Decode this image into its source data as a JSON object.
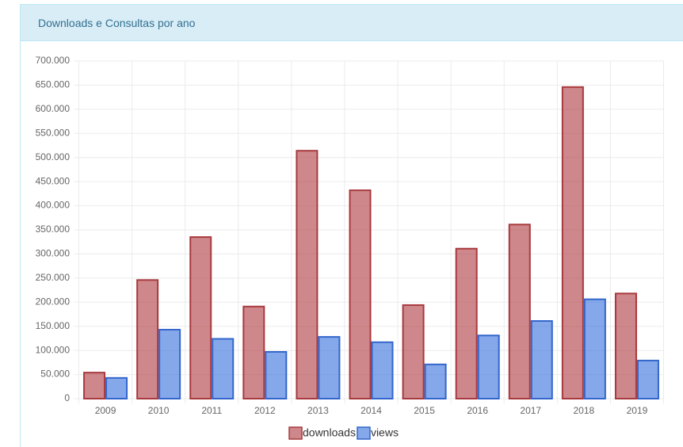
{
  "chart_data": {
    "type": "bar",
    "title": "Downloads e Consultas por ano",
    "categories": [
      "2009",
      "2010",
      "2011",
      "2012",
      "2013",
      "2014",
      "2015",
      "2016",
      "2017",
      "2018",
      "2019"
    ],
    "series": [
      {
        "name": "downloads",
        "color": "#a83a3e",
        "values": [
          54000,
          246000,
          335000,
          191000,
          514000,
          432000,
          194000,
          311000,
          361000,
          646000,
          218000
        ]
      },
      {
        "name": "views",
        "color": "#3366cc",
        "values": [
          43000,
          143000,
          124000,
          97000,
          128000,
          117000,
          71000,
          131000,
          161000,
          206000,
          79000
        ]
      }
    ],
    "ylim": [
      0,
      700000
    ],
    "yticks": [
      0,
      {
        "value": 50000,
        "label": "50.000"
      },
      {
        "value": 100000,
        "label": "100.000"
      },
      {
        "value": 150000,
        "label": "150.000"
      },
      {
        "value": 200000,
        "label": "200.000"
      },
      {
        "value": 250000,
        "label": "250.000"
      },
      {
        "value": 300000,
        "label": "300.000"
      },
      {
        "value": 350000,
        "label": "350.000"
      },
      {
        "value": 400000,
        "label": "400.000"
      },
      {
        "value": 450000,
        "label": "450.000"
      },
      {
        "value": 500000,
        "label": "500.000"
      },
      {
        "value": 550000,
        "label": "550.000"
      },
      {
        "value": 600000,
        "label": "600.000"
      },
      {
        "value": 650000,
        "label": "650.000"
      },
      {
        "value": 700000,
        "label": "700.000"
      }
    ],
    "grid": true
  }
}
